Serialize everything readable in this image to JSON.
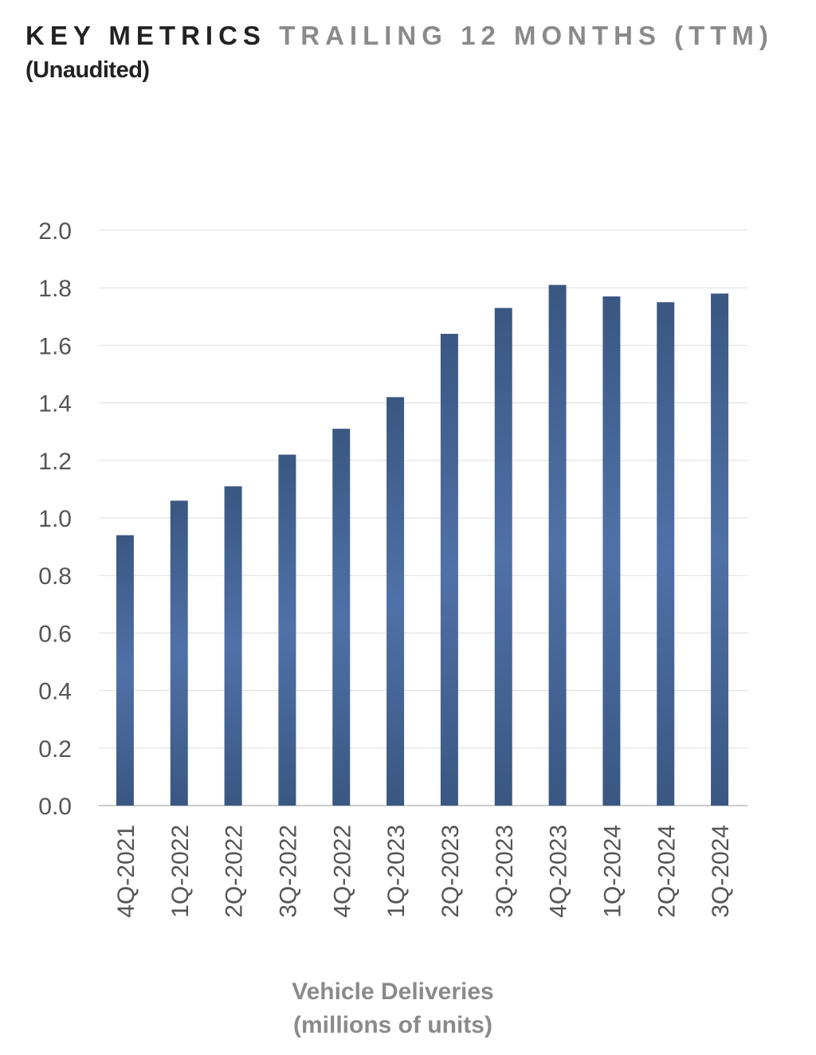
{
  "header": {
    "title_main": "KEY METRICS",
    "title_secondary": "TRAILING 12 MONTHS (TTM)",
    "subtitle": "(Unaudited)"
  },
  "chart_data": {
    "type": "bar",
    "categories": [
      "4Q-2021",
      "1Q-2022",
      "2Q-2022",
      "3Q-2022",
      "4Q-2022",
      "1Q-2023",
      "2Q-2023",
      "3Q-2023",
      "4Q-2023",
      "1Q-2024",
      "2Q-2024",
      "3Q-2024"
    ],
    "values": [
      0.94,
      1.06,
      1.11,
      1.22,
      1.31,
      1.42,
      1.64,
      1.73,
      1.81,
      1.77,
      1.75,
      1.78
    ],
    "title": "Vehicle Deliveries",
    "subtitle": "(millions of units)",
    "ylim": [
      0,
      2.0
    ],
    "yticks": [
      "0.0",
      "0.2",
      "0.4",
      "0.6",
      "0.8",
      "1.0",
      "1.2",
      "1.4",
      "1.6",
      "1.8",
      "2.0"
    ],
    "grid": true,
    "bar_color": "#4a6aa0"
  }
}
